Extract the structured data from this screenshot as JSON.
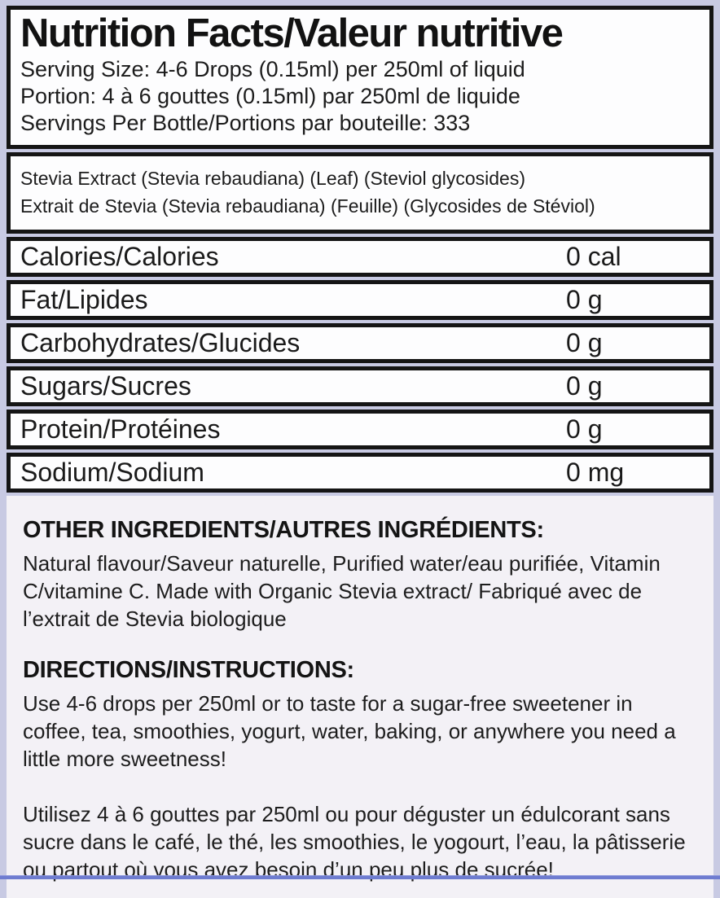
{
  "facts": {
    "title": "Nutrition Facts/Valeur nutritive",
    "serving_lines": [
      "Serving Size: 4-6 Drops (0.15ml) per 250ml of liquid",
      "Portion: 4 à 6 gouttes (0.15ml) par 250ml de liquide",
      "Servings Per Bottle/Portions par bouteille: 333"
    ],
    "source_lines": [
      "Stevia Extract (Stevia rebaudiana) (Leaf) (Steviol glycosides)",
      "Extrait de Stevia (Stevia rebaudiana) (Feuille) (Glycosides de Stéviol)"
    ],
    "nutrients": [
      {
        "name": "Calories/Calories",
        "value": "0 cal"
      },
      {
        "name": "Fat/Lipides",
        "value": "0 g"
      },
      {
        "name": "Carbohydrates/Glucides",
        "value": "0 g"
      },
      {
        "name": "Sugars/Sucres",
        "value": "0 g"
      },
      {
        "name": "Protein/Protéines",
        "value": "0 g"
      },
      {
        "name": "Sodium/Sodium",
        "value": "0 mg"
      }
    ]
  },
  "info": {
    "other_ingredients_heading": "OTHER INGREDIENTS/AUTRES INGRÉDIENTS:",
    "other_ingredients_text": "Natural flavour/Saveur naturelle, Purified water/eau purifiée, Vitamin C/vitamine C. Made with Organic Stevia extract/ Fabriqué avec de l’extrait de Stevia biologique",
    "directions_heading": "DIRECTIONS/INSTRUCTIONS:",
    "directions_text_en": "Use 4-6 drops per 250ml or to taste for a sugar-free sweetener in coffee, tea, smoothies, yogurt, water, baking, or anywhere you need a little more sweetness!",
    "directions_text_fr": "Utilisez 4 à 6 gouttes par 250ml ou pour déguster un édulcorant sans sucre dans le café, le thé, les smoothies, le yogourt, l’eau, la pâtisserie ou partout où vous avez besoin d’un peu plus de sucrée!"
  },
  "colors": {
    "page_background": "#c8cae3",
    "panel_background": "#f3f1f6",
    "table_background": "#fdfdfe",
    "border_black": "#151515",
    "bottom_strip_blue": "#6e7cd0"
  }
}
